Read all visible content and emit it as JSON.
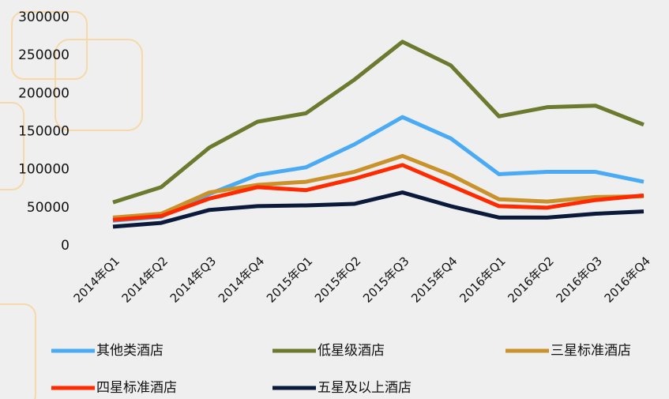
{
  "chart_data": {
    "type": "line",
    "categories": [
      "2014年Q1",
      "2014年Q2",
      "2014年Q3",
      "2014年Q4",
      "2015年Q1",
      "2015年Q2",
      "2015年Q3",
      "2015年Q4",
      "2016年Q1",
      "2016年Q2",
      "2016年Q3",
      "2016年Q4"
    ],
    "series": [
      {
        "name": "其他类酒店",
        "color": "#4aabf4",
        "values": [
          33000,
          38000,
          68000,
          93000,
          103000,
          133000,
          169000,
          141000,
          94000,
          97000,
          97000,
          84000
        ]
      },
      {
        "name": "低星级酒店",
        "color": "#6b7a2e",
        "values": [
          57000,
          77000,
          129000,
          163000,
          174000,
          218000,
          268000,
          237000,
          170000,
          182000,
          184000,
          159000
        ]
      },
      {
        "name": "三星标准酒店",
        "color": "#c9922b",
        "values": [
          37000,
          42000,
          70000,
          80000,
          84000,
          97000,
          118000,
          93000,
          61000,
          58000,
          64000,
          65000
        ]
      },
      {
        "name": "四星标准酒店",
        "color": "#ff2a00",
        "values": [
          34000,
          39000,
          62000,
          77000,
          73000,
          88000,
          106000,
          79000,
          52000,
          50000,
          60000,
          66000
        ]
      },
      {
        "name": "五星及以上酒店",
        "color": "#0b1a3a",
        "values": [
          25000,
          30000,
          47000,
          52000,
          53000,
          55000,
          70000,
          52000,
          37000,
          37000,
          42000,
          45000
        ]
      }
    ],
    "ylim": [
      0,
      300000
    ],
    "yticks": [
      0,
      50000,
      100000,
      150000,
      200000,
      250000,
      300000
    ]
  }
}
